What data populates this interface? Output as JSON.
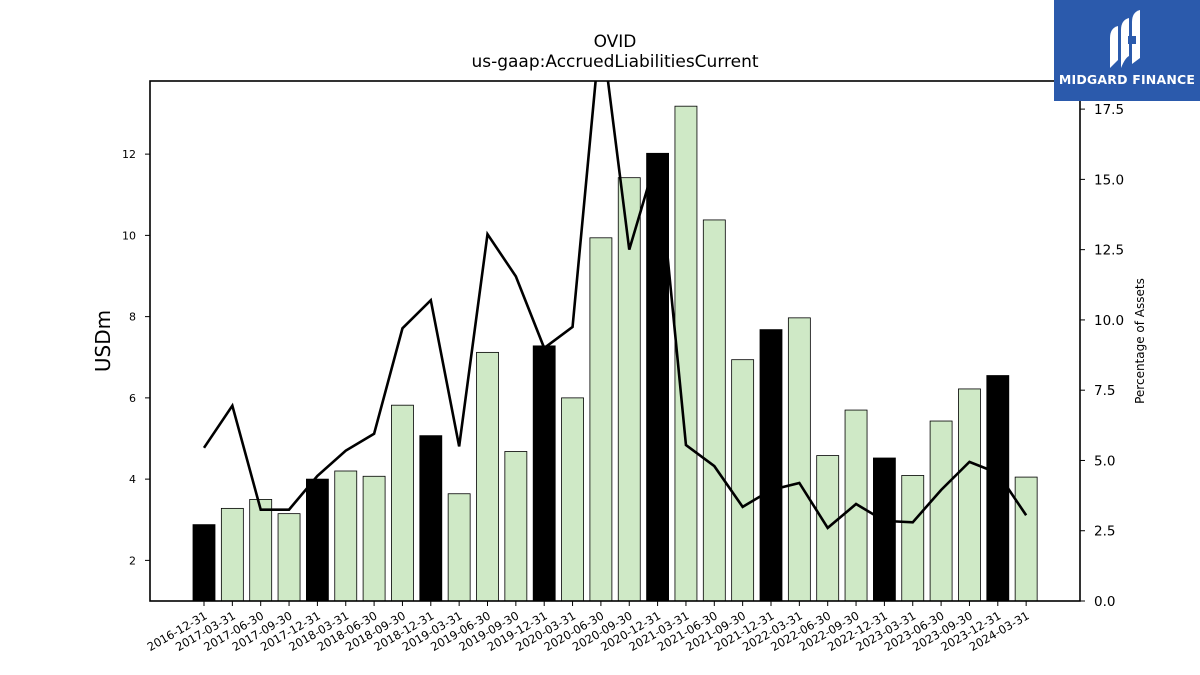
{
  "brand": {
    "name": "MIDGARD FINANCE",
    "logo_icon": "midgard-logo-icon",
    "bg_color": "#2b5aac"
  },
  "chart_data": {
    "type": "bar",
    "title": "OVID",
    "subtitle": "us-gaap:AccruedLiabilitiesCurrent",
    "ylabel": "USDm",
    "y2label": "Percentage of Assets",
    "ylim": [
      1.0,
      13.8
    ],
    "y2lim": [
      0.0,
      18.5
    ],
    "yticks": [
      "2",
      "4",
      "6",
      "8",
      "10",
      "12"
    ],
    "y2ticks": [
      "0.0",
      "2.5",
      "5.0",
      "7.5",
      "10.0",
      "12.5",
      "15.0",
      "17.5"
    ],
    "colors": {
      "annual_bar": "#000000",
      "quarter_bar": "#cfe9c6",
      "line": "#000000"
    },
    "categories": [
      "2016-12-31",
      "2017-03-31",
      "2017-06-30",
      "2017-09-30",
      "2017-12-31",
      "2018-03-31",
      "2018-06-30",
      "2018-09-30",
      "2018-12-31",
      "2019-03-31",
      "2019-06-30",
      "2019-09-30",
      "2019-12-31",
      "2020-03-31",
      "2020-06-30",
      "2020-09-30",
      "2020-12-31",
      "2021-03-31",
      "2021-06-30",
      "2021-09-30",
      "2021-12-31",
      "2022-03-31",
      "2022-06-30",
      "2022-09-30",
      "2022-12-31",
      "2023-03-31",
      "2023-06-30",
      "2023-09-30",
      "2023-12-31",
      "2024-03-31"
    ],
    "series": [
      {
        "type": "bar",
        "values": [
          2.88,
          3.28,
          3.5,
          3.15,
          4.0,
          4.2,
          4.07,
          5.82,
          5.07,
          3.64,
          7.12,
          4.68,
          7.28,
          6.0,
          9.94,
          11.42,
          12.02,
          13.18,
          10.38,
          6.94,
          7.68,
          7.97,
          4.58,
          5.7,
          4.52,
          4.09,
          5.43,
          6.22,
          6.55,
          4.05
        ],
        "highlight": [
          true,
          false,
          false,
          false,
          true,
          false,
          false,
          false,
          true,
          false,
          false,
          false,
          true,
          false,
          false,
          false,
          true,
          false,
          false,
          false,
          true,
          false,
          false,
          false,
          true,
          false,
          false,
          false,
          true,
          false
        ]
      },
      {
        "type": "line",
        "axis": "right",
        "values": [
          5.45,
          6.95,
          3.25,
          3.25,
          4.45,
          5.35,
          5.95,
          9.7,
          10.7,
          5.5,
          13.05,
          11.55,
          9.0,
          9.75,
          20.5,
          12.5,
          15.9,
          5.55,
          4.8,
          3.35,
          3.95,
          4.2,
          2.6,
          3.45,
          2.85,
          2.8,
          3.95,
          4.95,
          4.55,
          3.05
        ]
      }
    ]
  }
}
